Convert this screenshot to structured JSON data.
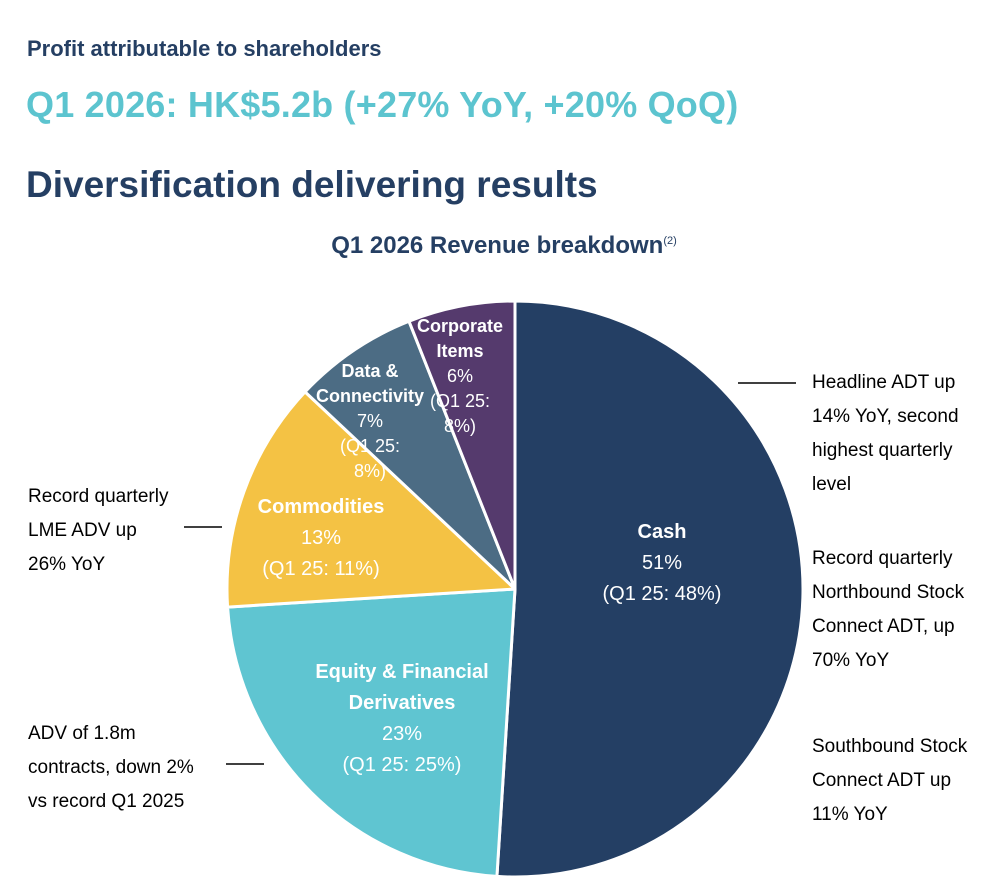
{
  "header": {
    "eyebrow": "Profit attributable to shareholders",
    "headline": "Q1 2026: HK$5.2b (+27% YoY, +20% QoQ)",
    "section_title": "Diversification delivering results"
  },
  "chart_data": {
    "type": "pie",
    "title": "Q1 2026 Revenue breakdown",
    "title_footnote": "(2)",
    "slices": [
      {
        "name": "Cash",
        "name_lines": [
          "Cash"
        ],
        "value": 51,
        "label": "51%",
        "prior_lines": [
          "(Q1 25: 48%)"
        ],
        "prior_value": 48,
        "color": "#243f64"
      },
      {
        "name": "Equity & Financial Derivatives",
        "name_lines": [
          "Equity & Financial",
          "Derivatives"
        ],
        "value": 23,
        "label": "23%",
        "prior_lines": [
          "(Q1 25: 25%)"
        ],
        "prior_value": 25,
        "color": "#5fc5d1"
      },
      {
        "name": "Commodities",
        "name_lines": [
          "Commodities"
        ],
        "value": 13,
        "label": "13%",
        "prior_lines": [
          "(Q1 25: 11%)"
        ],
        "prior_value": 11,
        "color": "#f4c244"
      },
      {
        "name": "Data & Connectivity",
        "name_lines": [
          "Data &",
          "Connectivity"
        ],
        "value": 7,
        "label": "7%",
        "prior_lines": [
          "(Q1 25:",
          "8%)"
        ],
        "prior_value": 8,
        "color": "#4c6c84"
      },
      {
        "name": "Corporate Items",
        "name_lines": [
          "Corporate",
          "Items"
        ],
        "value": 6,
        "label": "6%",
        "prior_lines": [
          "(Q1 25:",
          "8%)"
        ],
        "prior_value": 8,
        "color": "#553a6d"
      }
    ],
    "start_angle_deg": 0,
    "direction": "clockwise",
    "legend": "none"
  },
  "annotations": {
    "commodities": [
      "Record quarterly",
      "LME ADV up",
      "26% YoY"
    ],
    "equity": [
      "ADV of 1.8m",
      "contracts, down 2%",
      "vs record Q1 2025"
    ],
    "cash_1": [
      "Headline ADT up",
      "14% YoY, second",
      "highest quarterly",
      "level"
    ],
    "cash_2": [
      "Record quarterly",
      "Northbound Stock",
      "Connect ADT, up",
      "70% YoY"
    ],
    "cash_3": [
      "Southbound Stock",
      "Connect ADT up",
      "11% YoY"
    ]
  },
  "colors": {
    "navy": "#253f63",
    "teal": "#5cc4cf",
    "slice_text": "#ffffff"
  }
}
